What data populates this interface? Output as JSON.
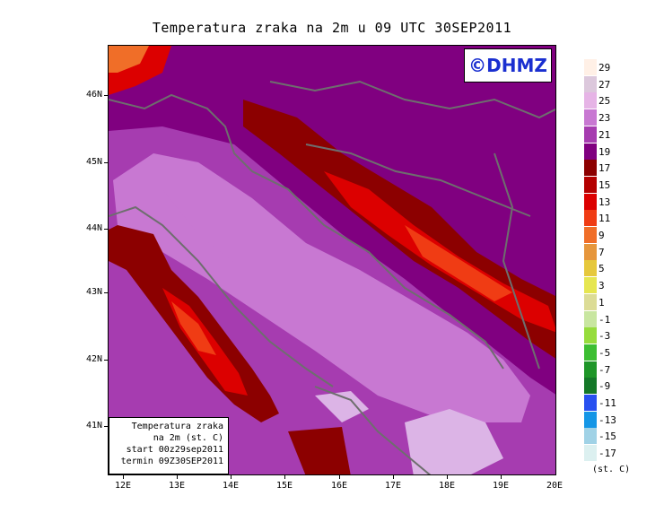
{
  "title": "Temperatura zraka na 2m u 09 UTC 30SEP2011",
  "logo": "©DHMZ",
  "infobox": {
    "line1": "Temperatura zraka",
    "line2": "na 2m (st. C)",
    "line3": "start 00z29sep2011",
    "line4": "termin 09Z30SEP2011"
  },
  "lat_labels": [
    "46N",
    "45N",
    "44N",
    "43N",
    "42N",
    "41N"
  ],
  "lon_labels": [
    "12E",
    "13E",
    "14E",
    "15E",
    "16E",
    "17E",
    "18E",
    "19E",
    "20E"
  ],
  "legend": {
    "units": "(st. C)",
    "labels": [
      "29",
      "27",
      "25",
      "23",
      "21",
      "19",
      "17",
      "15",
      "13",
      "11",
      "9",
      "7",
      "5",
      "3",
      "1",
      "-1",
      "-3",
      "-5",
      "-7",
      "-9",
      "-11",
      "-13",
      "-15",
      "-17"
    ],
    "colors": [
      "#fff0e6",
      "#dcc8dc",
      "#e6b4e6",
      "#c878d2",
      "#a63cb0",
      "#800080",
      "#8c0000",
      "#b40000",
      "#dc0000",
      "#f03c14",
      "#f06e28",
      "#e6963c",
      "#e6c83c",
      "#e6e650",
      "#dcdc96",
      "#c8e6a0",
      "#96dc3c",
      "#3cbe32",
      "#1e9628",
      "#147828",
      "#2850f0",
      "#1496e6",
      "#a0d2e6",
      "#dcf0f0",
      "#ffffff"
    ]
  },
  "contour_line_color": "#6e6e6e"
}
